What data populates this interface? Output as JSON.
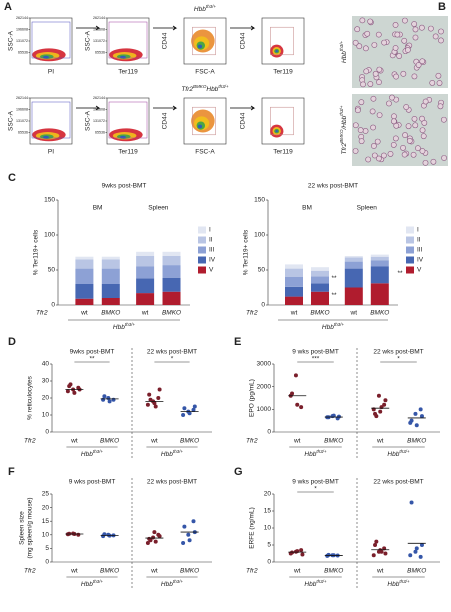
{
  "flow": {
    "panel": "A",
    "rows": [
      {
        "label": [
          {
            "text": "Hbb"
          },
          {
            "text": "th3/+",
            "sup": true
          }
        ],
        "plots": [
          {
            "xlabel": "PI",
            "ylabel": "SSC-A",
            "ylim": [
              0,
              262144
            ],
            "yticks": [
              262144,
              196608,
              131072,
              65536
            ]
          },
          {
            "xlabel": "Ter119",
            "ylabel": "SSC-A",
            "ylim": [
              0,
              262144
            ],
            "yticks": [
              262144,
              196608,
              131072,
              65536
            ]
          },
          {
            "xlabel": "FSC-A",
            "ylabel": "CD44"
          },
          {
            "xlabel": "Ter119",
            "ylabel": "CD44"
          }
        ]
      },
      {
        "label": [
          {
            "text": "Tfr2"
          },
          {
            "text": "BMKO",
            "sup": true
          },
          {
            "text": "Hbb"
          },
          {
            "text": "th3/+",
            "sup": true
          }
        ],
        "plots": [
          {
            "xlabel": "PI",
            "ylabel": "SSC-A",
            "ylim": [
              0,
              262144
            ],
            "yticks": [
              262144,
              196608,
              131072,
              65536
            ]
          },
          {
            "xlabel": "Ter119",
            "ylabel": "SSC-A",
            "ylim": [
              0,
              262144
            ],
            "yticks": [
              262144,
              196608,
              131072,
              65536
            ]
          },
          {
            "xlabel": "FSC-A",
            "ylabel": "CD44"
          },
          {
            "xlabel": "Ter119",
            "ylabel": "CD44"
          }
        ]
      }
    ]
  },
  "micrographs": {
    "panel": "B",
    "labels": [
      [
        {
          "text": "Hbb"
        },
        {
          "text": "th3/+",
          "sup": true
        }
      ],
      [
        {
          "text": "Tfr2"
        },
        {
          "text": "BMKO",
          "sup": true
        },
        {
          "text": "/Hbb"
        },
        {
          "text": "th3/+",
          "sup": true
        }
      ]
    ]
  },
  "chart_data": [
    {
      "type": "stacked_bar",
      "panel": "C",
      "title": "9wks post-BMT",
      "ylabel": [
        "% Ter119+ cells"
      ],
      "ylim": [
        0,
        150
      ],
      "yticks": [
        0,
        50,
        100,
        150
      ],
      "x_prefix": "Tfr2",
      "genotype": [
        {
          "text": "Hbb"
        },
        {
          "text": "th3/+",
          "sup": true
        }
      ],
      "groups": [
        {
          "name": "BM",
          "categories": [
            "wt",
            "BMKO"
          ]
        },
        {
          "name": "Spleen",
          "categories": [
            "wt",
            "BMKO"
          ]
        }
      ],
      "series": [
        {
          "name": "I",
          "color": "#e1e6f2",
          "values": [
            4,
            4,
            6,
            6
          ]
        },
        {
          "name": "II",
          "color": "#b9c5e4",
          "values": [
            13,
            13,
            15,
            13
          ]
        },
        {
          "name": "III",
          "color": "#8da1d5",
          "values": [
            22,
            22,
            17,
            18
          ]
        },
        {
          "name": "IV",
          "color": "#4767b2",
          "values": [
            21,
            20,
            21,
            20
          ]
        },
        {
          "name": "V",
          "color": "#b01c2e",
          "values": [
            9,
            10,
            17,
            19
          ]
        }
      ],
      "annotations": []
    },
    {
      "type": "stacked_bar",
      "title": "22 wks post-BMT",
      "ylabel": [
        "% Ter119+ cells"
      ],
      "ylim": [
        0,
        150
      ],
      "yticks": [
        0,
        50,
        100,
        150
      ],
      "x_prefix": "Tfr2",
      "genotype": [
        {
          "text": "Hbb"
        },
        {
          "text": "th3/+",
          "sup": true
        }
      ],
      "groups": [
        {
          "name": "BM",
          "categories": [
            "wt",
            "BMKO"
          ]
        },
        {
          "name": "Spleen",
          "categories": [
            "wt",
            "BMKO"
          ]
        }
      ],
      "series": [
        {
          "name": "I",
          "color": "#e1e6f2",
          "values": [
            6,
            5,
            2,
            3
          ]
        },
        {
          "name": "II",
          "color": "#b9c5e4",
          "values": [
            12,
            8,
            6,
            5
          ]
        },
        {
          "name": "III",
          "color": "#8da1d5",
          "values": [
            14,
            10,
            10,
            9
          ]
        },
        {
          "name": "IV",
          "color": "#4767b2",
          "values": [
            14,
            12,
            27,
            24
          ]
        },
        {
          "name": "V",
          "color": "#b01c2e",
          "values": [
            12,
            19,
            25,
            31
          ]
        }
      ],
      "annotations": [
        "**",
        "**",
        "**"
      ]
    },
    {
      "type": "scatter_dot",
      "panel": "D",
      "ylabel": [
        "% reticulocytes"
      ],
      "ylim": [
        0,
        40
      ],
      "yticks": [
        0,
        10,
        20,
        30,
        40
      ],
      "x_prefix": "Tfr2",
      "colors": [
        "#7a1f2b",
        "#3556a8"
      ],
      "groups": [
        {
          "title": "9wks post-BMT",
          "significance": "**",
          "categories": [
            "wt",
            "BMKO"
          ],
          "genotype": [
            {
              "text": "Hbb"
            },
            {
              "text": "th3/+",
              "sup": true
            }
          ],
          "points": [
            [
              24,
              25,
              26,
              27,
              23,
              25,
              28
            ],
            [
              19,
              20,
              19,
              21,
              18
            ]
          ],
          "means": [
            25,
            19.5
          ]
        },
        {
          "title": "22 wks post-BMT",
          "significance": "*",
          "categories": [
            "wt",
            "BMKO"
          ],
          "genotype": [
            {
              "text": "Hbb"
            },
            {
              "text": "th3/+",
              "sup": true
            }
          ],
          "points": [
            [
              16,
              18,
              20,
              22,
              17,
              25,
              19,
              15
            ],
            [
              10,
              12,
              13,
              14,
              11,
              15
            ]
          ],
          "means": [
            18,
            12
          ]
        }
      ]
    },
    {
      "type": "scatter_dot",
      "panel": "E",
      "ylabel": [
        "EPO (pg/mL)"
      ],
      "ylim": [
        0,
        3000
      ],
      "yticks": [
        0,
        1000,
        2000,
        3000
      ],
      "x_prefix": "Tfr2",
      "colors": [
        "#7a1f2b",
        "#3556a8"
      ],
      "groups": [
        {
          "title": "9 wks post-BMT",
          "significance": "***",
          "categories": [
            "wt",
            "BMKO"
          ],
          "genotype": [
            {
              "text": "Hbb"
            },
            {
              "text": "th3/+",
              "sup": true
            }
          ],
          "points": [
            [
              1600,
              2500,
              1100,
              1700,
              1200
            ],
            [
              650,
              700,
              600,
              650,
              720,
              680
            ]
          ],
          "means": [
            1600,
            660
          ]
        },
        {
          "title": "22 wks post-BMT",
          "significance": "*",
          "categories": [
            "wt",
            "BMKO"
          ],
          "genotype": [
            {
              "text": "Hbb"
            },
            {
              "text": "th3/+",
              "sup": true
            }
          ],
          "points": [
            [
              1000,
              1600,
              1200,
              800,
              900,
              1400,
              700,
              1100
            ],
            [
              400,
              800,
              1000,
              500,
              300,
              700
            ]
          ],
          "means": [
            1050,
            620
          ]
        }
      ]
    },
    {
      "type": "scatter_dot",
      "panel": "F",
      "ylabel": [
        "Spleen size",
        "(mg spleen/g mouse)"
      ],
      "ylim": [
        0,
        25
      ],
      "yticks": [
        0,
        5,
        10,
        15,
        20,
        25
      ],
      "x_prefix": "Tfr2",
      "colors": [
        "#7a1f2b",
        "#3556a8"
      ],
      "groups": [
        {
          "title": "9 wks post-BMT",
          "categories": [
            "wt",
            "BMKO"
          ],
          "genotype": [
            {
              "text": "Hbb"
            },
            {
              "text": "th3/+",
              "sup": true
            }
          ],
          "points": [
            [
              10.2,
              10.5,
              10,
              10.4,
              10.3
            ],
            [
              9.5,
              10,
              9.8,
              10.2,
              9.7
            ]
          ],
          "means": [
            10.3,
            9.8
          ]
        },
        {
          "title": "22 wks post-BMT",
          "categories": [
            "wt",
            "BMKO"
          ],
          "genotype": [
            {
              "text": "Hbb"
            },
            {
              "text": "th3/+",
              "sup": true
            }
          ],
          "points": [
            [
              7,
              9,
              10,
              8.5,
              11,
              9.5,
              8,
              7.5
            ],
            [
              7,
              10,
              15,
              13,
              8,
              11
            ]
          ],
          "means": [
            8.8,
            11
          ]
        }
      ]
    },
    {
      "type": "scatter_dot",
      "panel": "G",
      "ylabel": [
        "ERFE (ng/mL)"
      ],
      "ylim": [
        0,
        20
      ],
      "yticks": [
        0,
        5,
        10,
        15,
        20
      ],
      "x_prefix": "Tfr2",
      "colors": [
        "#7a1f2b",
        "#3556a8"
      ],
      "groups": [
        {
          "title": "9 wks post-BMT",
          "significance": "*",
          "categories": [
            "wt",
            "BMKO"
          ],
          "genotype": [
            {
              "text": "Hbb"
            },
            {
              "text": "th3/+",
              "sup": true
            }
          ],
          "points": [
            [
              2.5,
              3,
              3.5,
              2.8,
              3.2,
              2.2
            ],
            [
              1.8,
              2,
              1.9,
              2.1,
              2
            ]
          ],
          "means": [
            2.9,
            1.9
          ]
        },
        {
          "title": "22 wks post-BMT",
          "categories": [
            "wt",
            "BMKO"
          ],
          "genotype": [
            {
              "text": "Hbb"
            },
            {
              "text": "th3/+",
              "sup": true
            }
          ],
          "points": [
            [
              2,
              3,
              4,
              5,
              3.5,
              2.5,
              6,
              3
            ],
            [
              2,
              3,
              1.5,
              17.5,
              4,
              5
            ]
          ],
          "means": [
            3.6,
            5.5
          ]
        }
      ]
    }
  ]
}
